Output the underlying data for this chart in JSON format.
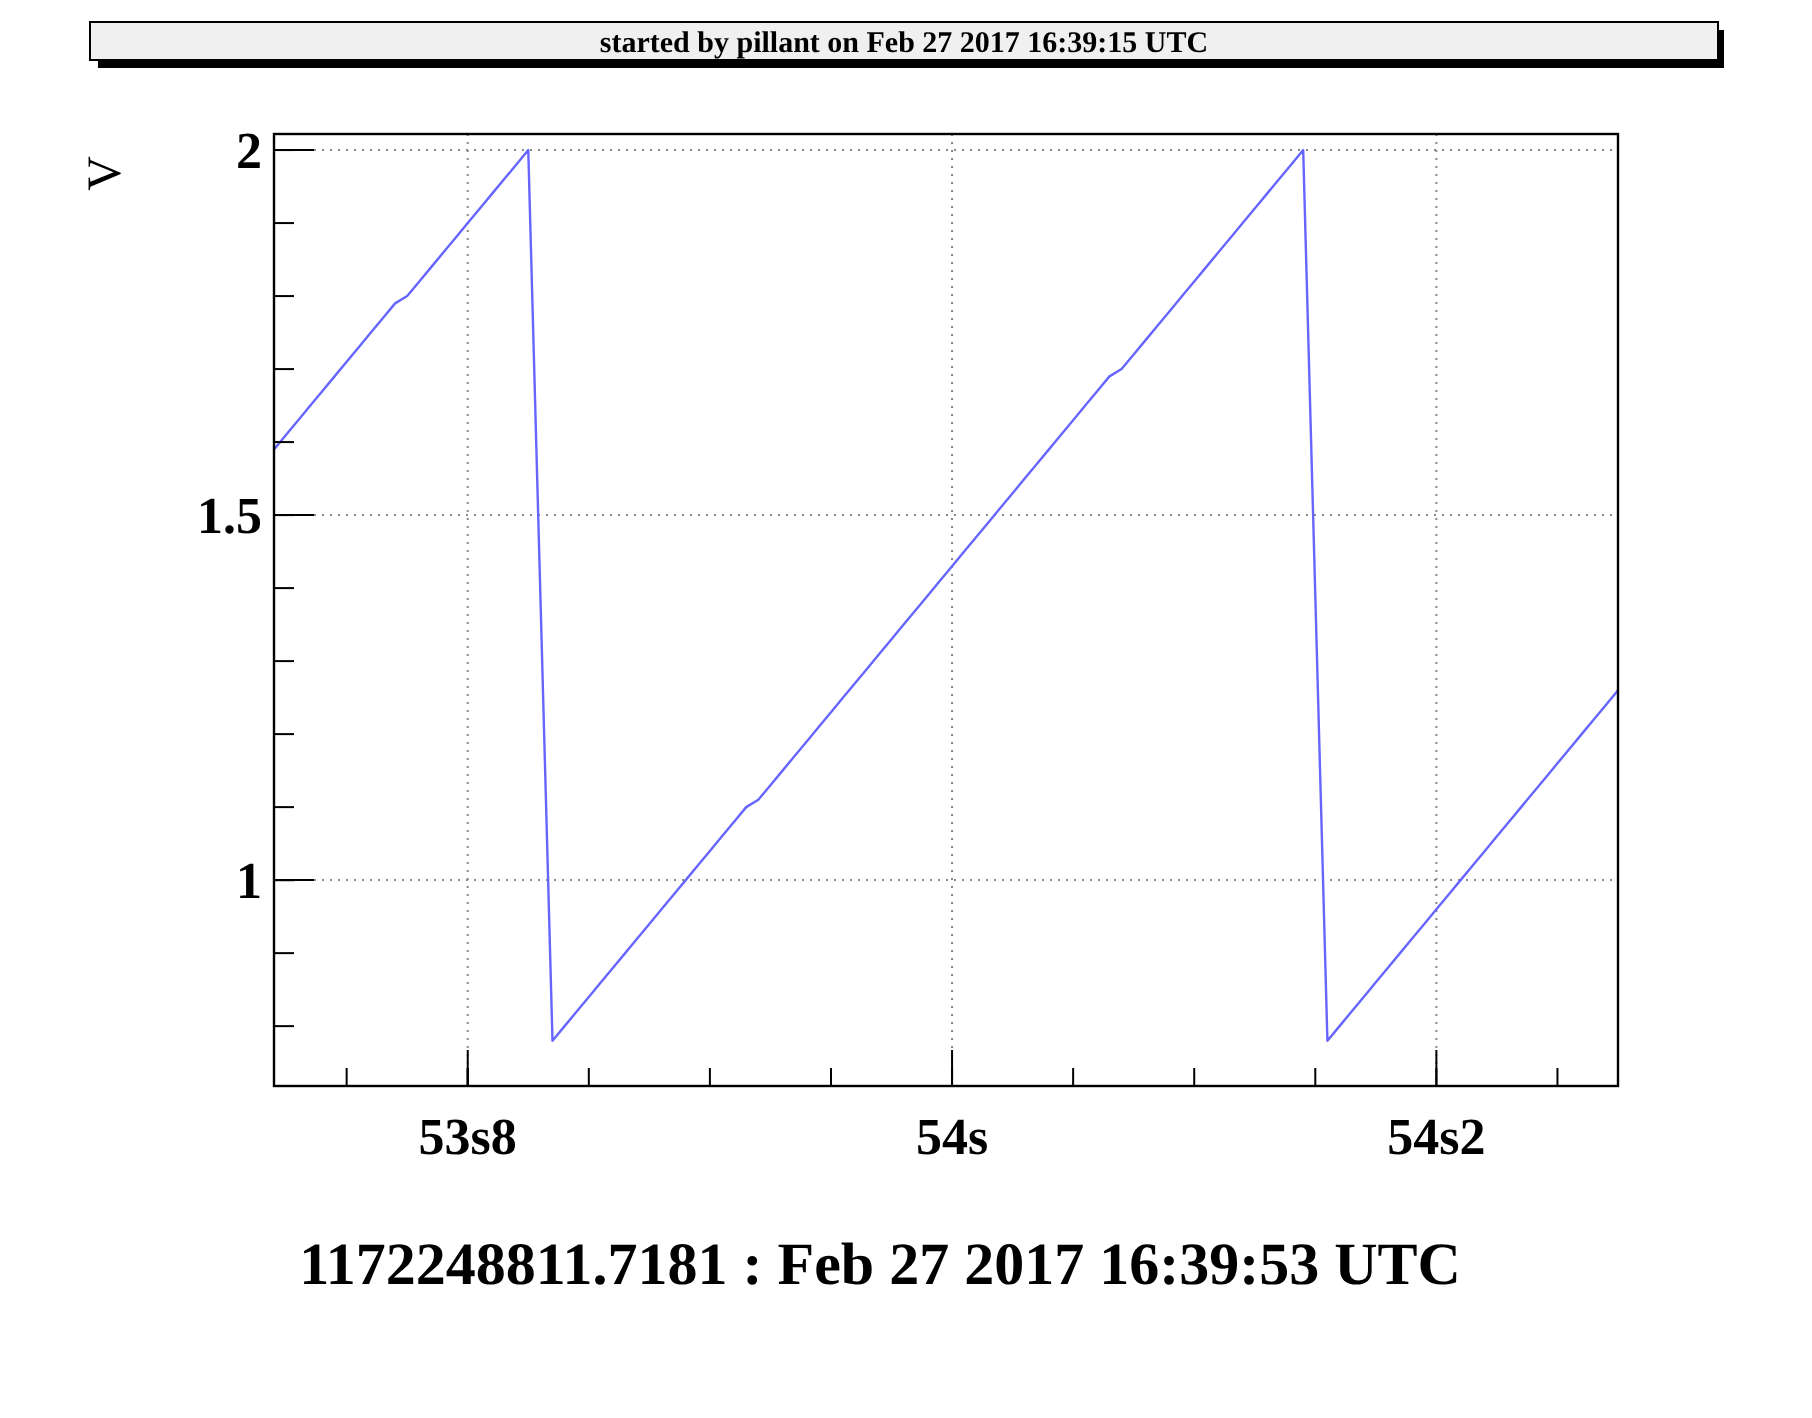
{
  "chart_data": {
    "type": "line",
    "ylabel": "V",
    "annotations": [
      "started by pillant on Feb 27 2017 16:39:15 UTC",
      "1172248811.7181 : Feb 27 2017 16:39:53 UTC"
    ],
    "categories": [
      null,
      null,
      null,
      null,
      null,
      null,
      null,
      null,
      null,
      null,
      null,
      null,
      null,
      null,
      null,
      null,
      "53s8",
      null,
      null,
      null,
      null,
      null,
      null,
      null,
      null,
      null,
      null,
      null,
      null,
      null,
      null,
      null,
      null,
      null,
      null,
      null,
      null,
      null,
      null,
      null,
      null,
      null,
      null,
      null,
      null,
      null,
      null,
      null,
      null,
      null,
      null,
      null,
      null,
      null,
      null,
      null,
      "54s",
      null,
      null,
      null,
      null,
      null,
      null,
      null,
      null,
      null,
      null,
      null,
      null,
      null,
      null,
      null,
      null,
      null,
      null,
      null,
      null,
      null,
      null,
      null,
      null,
      null,
      null,
      null,
      null,
      null,
      null,
      null,
      null,
      null,
      null,
      null,
      null,
      null,
      null,
      null,
      "54s2",
      null,
      null,
      null,
      null,
      null,
      null,
      null,
      null,
      null,
      null,
      null,
      null,
      null,
      null,
      null
    ],
    "series": [
      {
        "color": "#6666ff",
        "values": [
          1.59,
          1.61,
          1.63,
          1.65,
          1.67,
          1.69,
          1.71,
          1.73,
          1.75,
          1.77,
          1.79,
          1.8,
          1.82,
          1.84,
          1.86,
          1.88,
          1.9,
          1.92,
          1.94,
          1.96,
          1.98,
          2.0,
          1.39,
          0.78,
          0.8,
          0.82,
          0.84,
          0.86,
          0.88,
          0.9,
          0.92,
          0.94,
          0.96,
          0.98,
          1.0,
          1.02,
          1.04,
          1.06,
          1.08,
          1.1,
          1.11,
          1.13,
          1.15,
          1.17,
          1.19,
          1.21,
          1.23,
          1.25,
          1.27,
          1.29,
          1.31,
          1.33,
          1.35,
          1.37,
          1.39,
          1.41,
          1.43,
          1.45,
          1.47,
          1.49,
          1.51,
          1.53,
          1.55,
          1.57,
          1.59,
          1.61,
          1.63,
          1.65,
          1.67,
          1.69,
          1.7,
          1.72,
          1.74,
          1.76,
          1.78,
          1.8,
          1.82,
          1.84,
          1.86,
          1.88,
          1.9,
          1.92,
          1.94,
          1.96,
          1.98,
          2.0,
          1.39,
          0.78,
          0.8,
          0.82,
          0.84,
          0.86,
          0.88,
          0.9,
          0.92,
          0.94,
          0.96,
          0.98,
          1.0,
          1.02,
          1.04,
          1.06,
          1.08,
          1.1,
          1.12,
          1.14,
          1.16,
          1.18,
          1.2,
          1.22,
          1.24,
          1.26
        ]
      }
    ],
    "ylim": [
      0.718,
      2.022
    ],
    "yticks": [
      1,
      1.5,
      2
    ],
    "grid": true,
    "line_style": "solid"
  }
}
